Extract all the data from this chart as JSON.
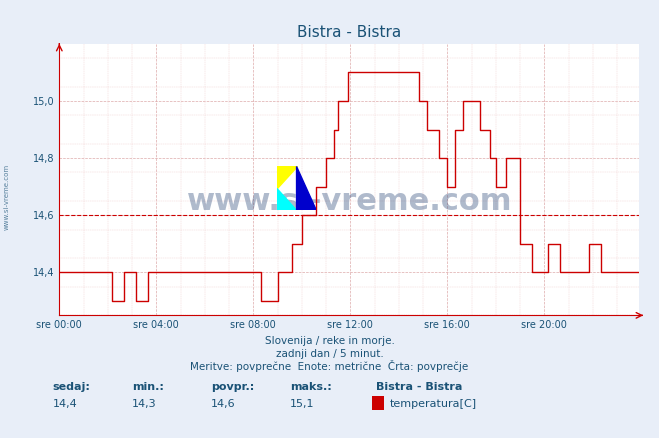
{
  "title": "Bistra - Bistra",
  "title_color": "#1a5276",
  "bg_color": "#e8eef8",
  "plot_bg_color": "#ffffff",
  "line_color": "#cc0000",
  "avg_line_color": "#cc0000",
  "avg_value": 14.6,
  "grid_color_major": "#aabbdd",
  "grid_color_minor": "#ddeeff",
  "ylabel_color": "#1a5276",
  "xlabel_color": "#1a5276",
  "ytick_labels": [
    "14,4",
    "14,6",
    "14,8",
    "15,0"
  ],
  "ytick_values": [
    14.4,
    14.6,
    14.8,
    15.0
  ],
  "xtick_labels": [
    "sre 00:00",
    "sre 04:00",
    "sre 08:00",
    "sre 12:00",
    "sre 16:00",
    "sre 20:00"
  ],
  "xtick_values": [
    0,
    48,
    96,
    144,
    192,
    240
  ],
  "xlim": [
    0,
    287
  ],
  "ylim": [
    14.25,
    15.2
  ],
  "watermark": "www.si-vreme.com",
  "watermark_color": "#1a3a6e",
  "left_label": "www.si-vreme.com",
  "subtitle1": "Slovenija / reke in morje.",
  "subtitle2": "zadnji dan / 5 minut.",
  "subtitle3": "Meritve: povprečne  Enote: metrične  Črta: povprečje",
  "footer_labels": [
    "sedaj:",
    "min.:",
    "povpr.:",
    "maks.:"
  ],
  "footer_values": [
    "14,4",
    "14,3",
    "14,6",
    "15,1"
  ],
  "legend_title": "Bistra - Bistra",
  "legend_item": "temperatura[C]",
  "legend_color": "#cc0000",
  "time_steps": [
    0,
    1,
    2,
    3,
    4,
    5,
    6,
    7,
    8,
    9,
    10,
    11,
    12,
    13,
    14,
    15,
    16,
    17,
    18,
    19,
    20,
    21,
    22,
    23,
    24,
    25,
    26,
    27,
    28,
    29,
    30,
    31,
    32,
    33,
    34,
    35,
    36,
    37,
    38,
    39,
    40,
    41,
    42,
    43,
    44,
    45,
    46,
    47,
    48,
    49,
    50,
    51,
    52,
    53,
    54,
    55,
    56,
    57,
    58,
    59,
    60,
    61,
    62,
    63,
    64,
    65,
    66,
    67,
    68,
    69,
    70,
    71,
    72,
    73,
    74,
    75,
    76,
    77,
    78,
    79,
    80,
    81,
    82,
    83,
    84,
    85,
    86,
    87,
    88,
    89,
    90,
    91,
    92,
    93,
    94,
    95,
    96,
    97,
    98,
    99,
    100,
    101,
    102,
    103,
    104,
    105,
    106,
    107,
    108,
    109,
    110,
    111,
    112,
    113,
    114,
    115,
    116,
    117,
    118,
    119,
    120,
    121,
    122,
    123,
    124,
    125,
    126,
    127,
    128,
    129,
    130,
    131,
    132,
    133,
    134,
    135,
    136,
    137,
    138,
    139,
    140,
    141,
    142,
    143,
    144,
    145,
    146,
    147,
    148,
    149,
    150,
    151,
    152,
    153,
    154,
    155,
    156,
    157,
    158,
    159,
    160,
    161,
    162,
    163,
    164,
    165,
    166,
    167,
    168,
    169,
    170,
    171,
    172,
    173,
    174,
    175,
    176,
    177,
    178,
    179,
    180,
    181,
    182,
    183,
    184,
    185,
    186,
    187,
    188,
    189,
    190,
    191,
    192,
    193,
    194,
    195,
    196,
    197,
    198,
    199,
    200,
    201,
    202,
    203,
    204,
    205,
    206,
    207,
    208,
    209,
    210,
    211,
    212,
    213,
    214,
    215,
    216,
    217,
    218,
    219,
    220,
    221,
    222,
    223,
    224,
    225,
    226,
    227,
    228,
    229,
    230,
    231,
    232,
    233,
    234,
    235,
    236,
    237,
    238,
    239,
    240,
    241,
    242,
    243,
    244,
    245,
    246,
    247,
    248,
    249,
    250,
    251,
    252,
    253,
    254,
    255,
    256,
    257,
    258,
    259,
    260,
    261,
    262,
    263,
    264,
    265,
    266,
    267,
    268,
    269,
    270,
    271,
    272,
    273,
    274,
    275,
    276,
    277,
    278,
    279,
    280,
    281,
    282,
    283,
    284,
    285,
    286,
    287
  ],
  "temp_data": {
    "segments": [
      {
        "x_start": 0,
        "x_end": 26,
        "y": 14.4
      },
      {
        "x_start": 26,
        "x_end": 32,
        "y": 14.3
      },
      {
        "x_start": 32,
        "x_end": 38,
        "y": 14.4
      },
      {
        "x_start": 38,
        "x_end": 44,
        "y": 14.3
      },
      {
        "x_start": 44,
        "x_end": 100,
        "y": 14.4
      },
      {
        "x_start": 100,
        "x_end": 108,
        "y": 14.3
      },
      {
        "x_start": 108,
        "x_end": 115,
        "y": 14.4
      },
      {
        "x_start": 115,
        "x_end": 120,
        "y": 14.5
      },
      {
        "x_start": 120,
        "x_end": 127,
        "y": 14.6
      },
      {
        "x_start": 127,
        "x_end": 132,
        "y": 14.7
      },
      {
        "x_start": 132,
        "x_end": 136,
        "y": 14.8
      },
      {
        "x_start": 136,
        "x_end": 138,
        "y": 14.9
      },
      {
        "x_start": 138,
        "x_end": 143,
        "y": 15.0
      },
      {
        "x_start": 143,
        "x_end": 145,
        "y": 15.1
      },
      {
        "x_start": 145,
        "x_end": 178,
        "y": 15.1
      },
      {
        "x_start": 178,
        "x_end": 182,
        "y": 15.0
      },
      {
        "x_start": 182,
        "x_end": 188,
        "y": 14.9
      },
      {
        "x_start": 188,
        "x_end": 192,
        "y": 14.8
      },
      {
        "x_start": 192,
        "x_end": 196,
        "y": 14.7
      },
      {
        "x_start": 196,
        "x_end": 200,
        "y": 14.9
      },
      {
        "x_start": 200,
        "x_end": 204,
        "y": 15.0
      },
      {
        "x_start": 204,
        "x_end": 208,
        "y": 15.0
      },
      {
        "x_start": 208,
        "x_end": 213,
        "y": 14.9
      },
      {
        "x_start": 213,
        "x_end": 216,
        "y": 14.8
      },
      {
        "x_start": 216,
        "x_end": 221,
        "y": 14.7
      },
      {
        "x_start": 221,
        "x_end": 228,
        "y": 14.8
      },
      {
        "x_start": 228,
        "x_end": 234,
        "y": 14.5
      },
      {
        "x_start": 234,
        "x_end": 242,
        "y": 14.4
      },
      {
        "x_start": 242,
        "x_end": 248,
        "y": 14.5
      },
      {
        "x_start": 248,
        "x_end": 262,
        "y": 14.4
      },
      {
        "x_start": 262,
        "x_end": 268,
        "y": 14.5
      },
      {
        "x_start": 268,
        "x_end": 287,
        "y": 14.4
      }
    ]
  }
}
